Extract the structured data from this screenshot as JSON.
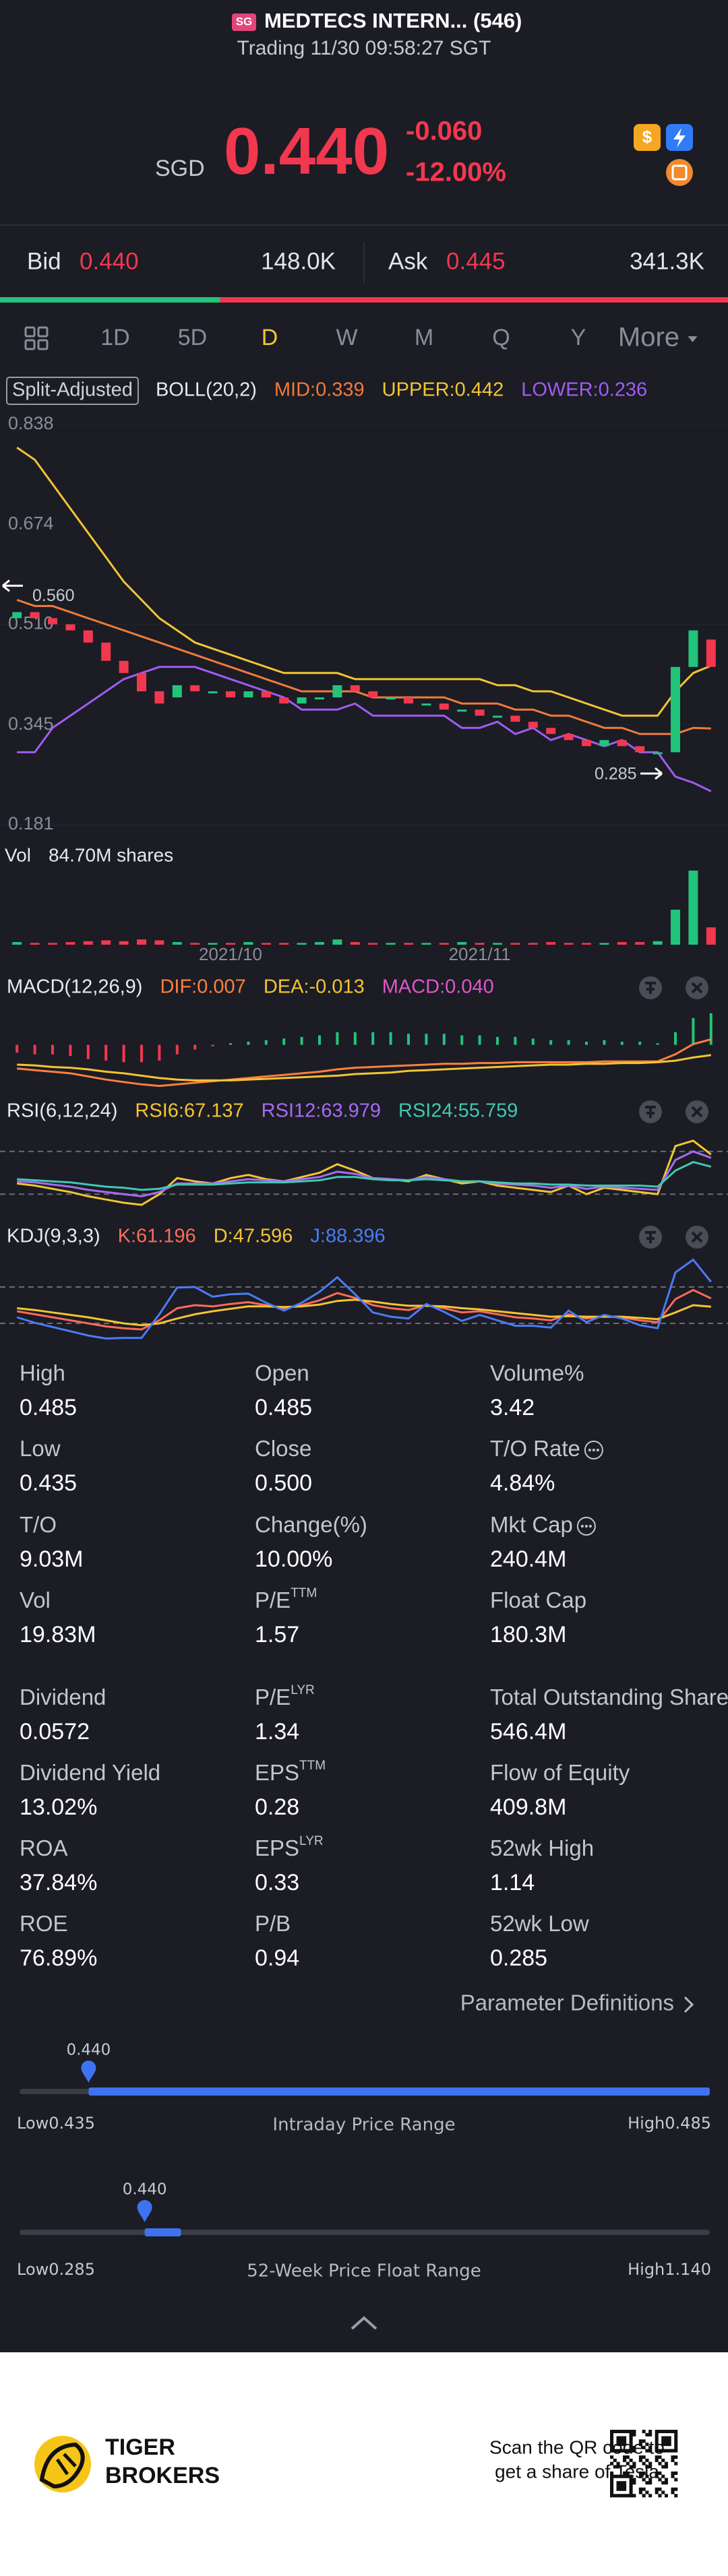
{
  "header": {
    "badge": "SG",
    "title": "MEDTECS INTERN... (546)",
    "status": "Trading 11/30 09:58:27 SGT"
  },
  "quote": {
    "currency": "SGD",
    "price": "0.440",
    "change": "-0.060",
    "change_pct": "-12.00%"
  },
  "bid_ask": {
    "bid_label": "Bid",
    "bid": "0.440",
    "bid_size": {
      "value": 148000,
      "label": "148.0K"
    },
    "ask_label": "Ask",
    "ask": "0.445",
    "ask_size": {
      "value": 341300,
      "label": "341.3K"
    }
  },
  "tabs": [
    {
      "label": "1D"
    },
    {
      "label": "5D"
    },
    {
      "label": "D",
      "selected": true
    },
    {
      "label": "W"
    },
    {
      "label": "M"
    },
    {
      "label": "Q"
    },
    {
      "label": "Y"
    },
    {
      "label": "More"
    }
  ],
  "chart_data": [
    {
      "type": "candlestick",
      "badge": "Split-Adjusted",
      "indicator": "BOLL(20,2)",
      "categories": [
        null,
        null,
        null,
        null,
        null,
        null,
        null,
        null,
        null,
        null,
        null,
        null,
        "2021/10",
        null,
        null,
        null,
        null,
        null,
        null,
        null,
        null,
        null,
        null,
        null,
        null,
        null,
        "2021/11",
        null,
        null,
        null,
        null,
        null,
        null,
        null,
        null,
        null,
        null,
        null,
        null,
        null
      ],
      "open": [
        0.52,
        0.53,
        0.52,
        0.51,
        0.5,
        0.48,
        0.45,
        0.43,
        0.4,
        0.39,
        0.41,
        0.4,
        0.4,
        0.39,
        0.4,
        0.39,
        0.38,
        0.39,
        0.39,
        0.41,
        0.4,
        0.39,
        0.39,
        0.38,
        0.38,
        0.37,
        0.37,
        0.36,
        0.36,
        0.35,
        0.34,
        0.33,
        0.32,
        0.31,
        0.32,
        0.31,
        0.3,
        0.3,
        0.44,
        0.485
      ],
      "close": [
        0.53,
        0.52,
        0.51,
        0.5,
        0.48,
        0.45,
        0.43,
        0.4,
        0.38,
        0.41,
        0.4,
        0.4,
        0.39,
        0.4,
        0.39,
        0.38,
        0.39,
        0.39,
        0.41,
        0.4,
        0.39,
        0.39,
        0.38,
        0.38,
        0.37,
        0.37,
        0.36,
        0.36,
        0.35,
        0.34,
        0.33,
        0.32,
        0.31,
        0.32,
        0.31,
        0.3,
        0.3,
        0.44,
        0.5,
        0.44
      ],
      "series": [
        {
          "name": "MID:0.339",
          "color": "#f07a3a",
          "values": [
            0.55,
            0.54,
            0.54,
            0.53,
            0.52,
            0.51,
            0.5,
            0.49,
            0.48,
            0.47,
            0.46,
            0.45,
            0.44,
            0.43,
            0.42,
            0.41,
            0.4,
            0.4,
            0.4,
            0.4,
            0.39,
            0.39,
            0.39,
            0.39,
            0.39,
            0.38,
            0.38,
            0.38,
            0.37,
            0.37,
            0.36,
            0.36,
            0.35,
            0.34,
            0.34,
            0.33,
            0.33,
            0.33,
            0.34,
            0.339
          ]
        },
        {
          "name": "UPPER:0.442",
          "color": "#f3c531",
          "values": [
            0.8,
            0.78,
            0.74,
            0.7,
            0.66,
            0.62,
            0.58,
            0.55,
            0.52,
            0.5,
            0.48,
            0.47,
            0.46,
            0.45,
            0.44,
            0.43,
            0.43,
            0.43,
            0.43,
            0.42,
            0.42,
            0.42,
            0.42,
            0.42,
            0.42,
            0.42,
            0.42,
            0.41,
            0.41,
            0.4,
            0.4,
            0.39,
            0.38,
            0.37,
            0.36,
            0.36,
            0.36,
            0.4,
            0.43,
            0.442
          ]
        },
        {
          "name": "LOWER:0.236",
          "color": "#a05cf0",
          "values": [
            0.3,
            0.3,
            0.34,
            0.36,
            0.38,
            0.4,
            0.42,
            0.43,
            0.44,
            0.44,
            0.44,
            0.43,
            0.42,
            0.41,
            0.4,
            0.39,
            0.37,
            0.37,
            0.37,
            0.38,
            0.36,
            0.36,
            0.36,
            0.36,
            0.36,
            0.34,
            0.34,
            0.35,
            0.33,
            0.34,
            0.32,
            0.33,
            0.32,
            0.31,
            0.32,
            0.3,
            0.3,
            0.26,
            0.25,
            0.236
          ]
        }
      ],
      "up_color": "#22c47a",
      "down_color": "#f2384f",
      "ylim": [
        0.16,
        0.86
      ],
      "yticks": [
        0.838,
        0.674,
        {
          "value": 0.51,
          "label": "0.510"
        },
        0.345,
        0.181
      ],
      "annotations": [
        {
          "value": 0.56,
          "label": "0.560"
        },
        {
          "value": 0.285,
          "label": "0.285"
        }
      ]
    },
    {
      "type": "bar",
      "title": "Vol",
      "subtitle": "84.70M shares",
      "values": [
        3,
        2,
        2,
        3,
        4,
        5,
        4,
        6,
        5,
        3,
        2,
        2,
        2,
        3,
        2,
        2,
        2,
        3,
        6,
        3,
        2,
        2,
        2,
        2,
        2,
        3,
        2,
        2,
        2,
        2,
        3,
        2,
        2,
        2,
        3,
        3,
        4,
        40,
        84.7,
        19.83
      ],
      "ylim": [
        0,
        84.7
      ]
    },
    {
      "type": "macd",
      "title": "MACD(12,26,9)",
      "values_name": "MACD:0.040",
      "values_color": "#e056c8",
      "up_color": "#22c47a",
      "down_color": "#f2384f",
      "values": [
        -0.01,
        -0.012,
        -0.012,
        -0.014,
        -0.018,
        -0.02,
        -0.022,
        -0.022,
        -0.02,
        -0.012,
        -0.006,
        -0.002,
        0.002,
        0.004,
        0.006,
        0.008,
        0.01,
        0.012,
        0.016,
        0.016,
        0.016,
        0.016,
        0.014,
        0.014,
        0.014,
        0.012,
        0.012,
        0.01,
        0.01,
        0.008,
        0.006,
        0.006,
        0.004,
        0.006,
        0.004,
        0.004,
        0.002,
        0.016,
        0.034,
        0.04
      ],
      "series": [
        {
          "name": "DIF:0.007",
          "color": "#ff7f3f",
          "values": [
            -0.03,
            -0.032,
            -0.034,
            -0.036,
            -0.04,
            -0.044,
            -0.047,
            -0.05,
            -0.052,
            -0.05,
            -0.048,
            -0.046,
            -0.044,
            -0.042,
            -0.04,
            -0.038,
            -0.036,
            -0.034,
            -0.031,
            -0.029,
            -0.028,
            -0.027,
            -0.026,
            -0.025,
            -0.024,
            -0.024,
            -0.023,
            -0.023,
            -0.022,
            -0.022,
            -0.022,
            -0.022,
            -0.022,
            -0.021,
            -0.021,
            -0.021,
            -0.021,
            -0.012,
            0.001,
            0.007
          ]
        },
        {
          "name": "DEA:-0.013",
          "color": "#f3c531",
          "values": [
            -0.025,
            -0.026,
            -0.028,
            -0.029,
            -0.031,
            -0.034,
            -0.036,
            -0.039,
            -0.042,
            -0.044,
            -0.045,
            -0.045,
            -0.045,
            -0.044,
            -0.043,
            -0.042,
            -0.041,
            -0.04,
            -0.039,
            -0.037,
            -0.036,
            -0.035,
            -0.033,
            -0.032,
            -0.031,
            -0.03,
            -0.029,
            -0.028,
            -0.027,
            -0.026,
            -0.025,
            -0.025,
            -0.024,
            -0.024,
            -0.023,
            -0.023,
            -0.022,
            -0.02,
            -0.016,
            -0.013
          ]
        }
      ],
      "ylim": [
        -0.06,
        0.05
      ]
    },
    {
      "type": "line",
      "title": "RSI(6,12,24)",
      "series": [
        {
          "name": "RSI6:67.137",
          "color": "#f3c531",
          "values": [
            40,
            38,
            35,
            32,
            28,
            25,
            22,
            20,
            30,
            45,
            42,
            40,
            45,
            48,
            44,
            42,
            46,
            50,
            58,
            52,
            45,
            44,
            42,
            48,
            44,
            40,
            42,
            38,
            36,
            34,
            32,
            38,
            30,
            36,
            34,
            32,
            30,
            75,
            80,
            67.137
          ]
        },
        {
          "name": "RSI12:63.979",
          "color": "#a56cf0",
          "values": [
            42,
            41,
            39,
            37,
            34,
            32,
            30,
            28,
            32,
            40,
            40,
            40,
            42,
            44,
            43,
            42,
            44,
            46,
            51,
            49,
            45,
            44,
            43,
            46,
            44,
            42,
            42,
            40,
            39,
            38,
            36,
            38,
            35,
            37,
            36,
            35,
            34,
            62,
            70,
            63.979
          ]
        },
        {
          "name": "RSI24:55.759",
          "color": "#3fc9b0",
          "values": [
            44,
            43,
            42,
            41,
            39,
            37,
            36,
            34,
            35,
            39,
            39,
            39,
            40,
            41,
            41,
            41,
            42,
            43,
            46,
            46,
            44,
            43,
            43,
            44,
            43,
            42,
            42,
            41,
            40,
            40,
            39,
            39,
            38,
            38,
            38,
            38,
            37,
            52,
            60,
            55.759
          ]
        }
      ],
      "reference_lines": [
        30,
        70
      ],
      "ylim": [
        10,
        90
      ]
    },
    {
      "type": "line",
      "title": "KDJ(9,3,3)",
      "series": [
        {
          "name": "K:61.196",
          "color": "#ff6b57",
          "values": [
            40,
            35,
            30,
            25,
            20,
            15,
            12,
            10,
            25,
            45,
            50,
            48,
            52,
            55,
            50,
            45,
            50,
            58,
            70,
            62,
            50,
            45,
            42,
            50,
            45,
            38,
            40,
            35,
            30,
            28,
            25,
            35,
            28,
            32,
            30,
            25,
            22,
            60,
            75,
            61.196
          ]
        },
        {
          "name": "D:47.596",
          "color": "#f3c531",
          "values": [
            45,
            42,
            38,
            34,
            30,
            25,
            20,
            17,
            20,
            28,
            35,
            40,
            44,
            48,
            48,
            47,
            48,
            51,
            57,
            59,
            56,
            52,
            49,
            49,
            48,
            45,
            43,
            40,
            37,
            34,
            31,
            32,
            31,
            31,
            31,
            29,
            27,
            38,
            50,
            47.596
          ]
        },
        {
          "name": "J:88.396",
          "color": "#4a7cf5",
          "values": [
            30,
            21,
            14,
            7,
            0,
            -5,
            -4,
            -4,
            35,
            79,
            80,
            64,
            68,
            69,
            54,
            41,
            54,
            72,
            96,
            68,
            38,
            31,
            28,
            52,
            39,
            24,
            34,
            25,
            16,
            16,
            13,
            41,
            22,
            34,
            28,
            17,
            12,
            104,
            125,
            88.396
          ]
        }
      ],
      "reference_lines": [
        20,
        80
      ],
      "ylim": [
        -20,
        130
      ]
    }
  ],
  "stats": {
    "items": [
      {
        "label": "High",
        "value": "0.485"
      },
      {
        "label": "Open",
        "value": "0.485"
      },
      {
        "label": "Volume%",
        "value": "3.42"
      },
      {
        "label": "Low",
        "value": "0.435"
      },
      {
        "label": "Close",
        "value": "0.500"
      },
      {
        "label": "T/O Rate",
        "value": "4.84%",
        "info": true
      },
      {
        "label": "T/O",
        "value": "9.03M"
      },
      {
        "label": "Change(%)",
        "value": "10.00%"
      },
      {
        "label": "Mkt Cap",
        "value": "240.4M",
        "info": true
      },
      {
        "label": "Vol",
        "value": "19.83M"
      },
      {
        "label": "P/E",
        "sup": "TTM",
        "value": "1.57"
      },
      {
        "label": "Float Cap",
        "value": "180.3M"
      },
      {
        "label": "Dividend",
        "value": "0.0572"
      },
      {
        "label": "P/E",
        "sup": "LYR",
        "value": "1.34"
      },
      {
        "label": "Total Outstanding Shares",
        "value": "546.4M"
      },
      {
        "label": "Dividend Yield",
        "value": "13.02%"
      },
      {
        "label": "EPS",
        "sup": "TTM",
        "value": "0.28"
      },
      {
        "label": "Flow of Equity",
        "value": "409.8M"
      },
      {
        "label": "ROA",
        "value": "37.84%"
      },
      {
        "label": "EPS",
        "sup": "LYR",
        "value": "0.33"
      },
      {
        "label": "52wk High",
        "value": "1.14"
      },
      {
        "label": "ROE",
        "value": "76.89%"
      },
      {
        "label": "P/B",
        "value": "0.94"
      },
      {
        "label": "52wk Low",
        "value": "0.285"
      }
    ],
    "definitions": "Parameter Definitions"
  },
  "ranges": [
    {
      "title": "Intraday Price Range",
      "current": {
        "value": 0.44,
        "label": "0.440"
      },
      "bar_end": 0.485,
      "low_label": "Low",
      "low": 0.435,
      "high_label": "High",
      "high": 0.485
    },
    {
      "title": "52-Week Price Float Range",
      "current": {
        "value": 0.44,
        "label": "0.440"
      },
      "bar_end": 0.485,
      "low_label": "Low",
      "low": 0.285,
      "high_label": "High",
      "high": {
        "value": 1.14,
        "label": "1.140"
      }
    }
  ],
  "footer": {
    "brand_line1": "TIGER",
    "brand_line2": "BROKERS",
    "promo_line1": "Scan the QR code to",
    "promo_line2": "get a share of Tesla"
  }
}
